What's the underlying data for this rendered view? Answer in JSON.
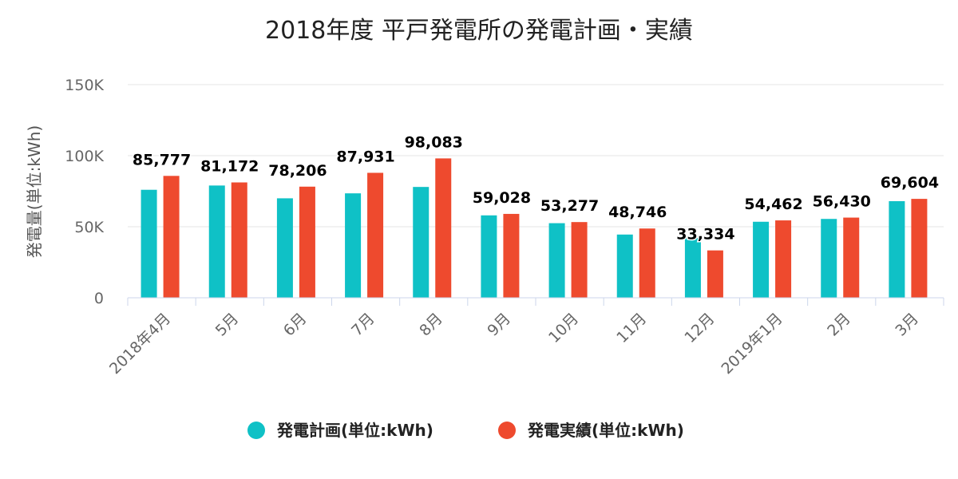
{
  "chart_data": {
    "type": "bar",
    "title": "2018年度 平戸発電所の発電計画・実績",
    "ylabel": "発電量(単位:kWh)",
    "ylim": [
      0,
      150000
    ],
    "yticks": [
      0,
      50000,
      100000,
      150000
    ],
    "ytick_labels": [
      "0",
      "50K",
      "100K",
      "150K"
    ],
    "categories": [
      "2018年4月",
      "5月",
      "6月",
      "7月",
      "8月",
      "9月",
      "10月",
      "11月",
      "12月",
      "2019年1月",
      "2月",
      "3月"
    ],
    "series": [
      {
        "name": "発電計画(単位:kWh)",
        "color": "#0fc1c6",
        "values": [
          76000,
          79000,
          70000,
          73500,
          78000,
          58000,
          52500,
          44500,
          42000,
          53500,
          55500,
          68000
        ]
      },
      {
        "name": "発電実績(単位:kWh)",
        "color": "#ee4a2e",
        "values": [
          85777,
          81172,
          78206,
          87931,
          98083,
          59028,
          53277,
          48746,
          33334,
          54462,
          56430,
          69604
        ]
      }
    ],
    "data_labels": [
      "85,777",
      "81,172",
      "78,206",
      "87,931",
      "98,083",
      "59,028",
      "53,277",
      "48,746",
      "33,334",
      "54,462",
      "56,430",
      "69,604"
    ],
    "grid": true,
    "legend_position": "bottom"
  }
}
